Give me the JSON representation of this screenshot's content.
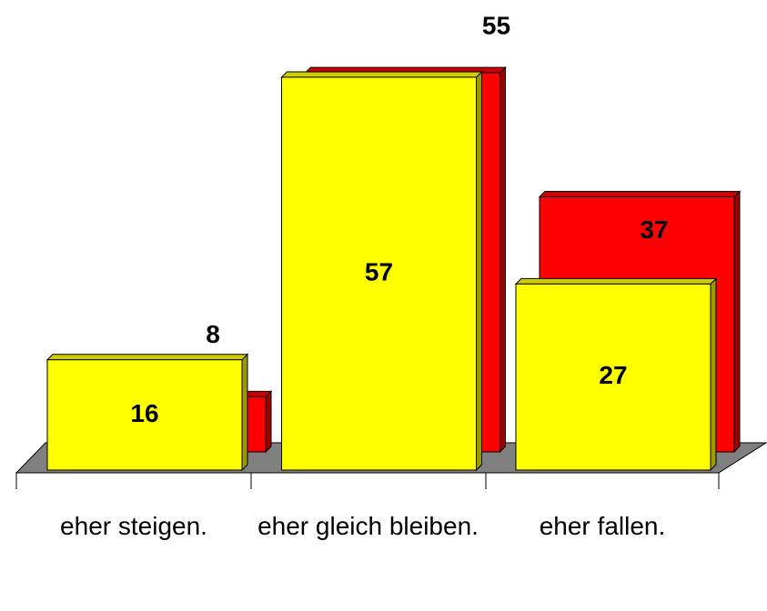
{
  "chart_data": {
    "type": "bar3d",
    "categories": [
      "eher steigen.",
      "eher gleich bleiben.",
      "eher fallen."
    ],
    "series": [
      {
        "color": "#ffff00",
        "values": [
          16,
          57,
          27
        ]
      },
      {
        "color": "#ff0000",
        "values": [
          8,
          55,
          37
        ]
      }
    ]
  }
}
